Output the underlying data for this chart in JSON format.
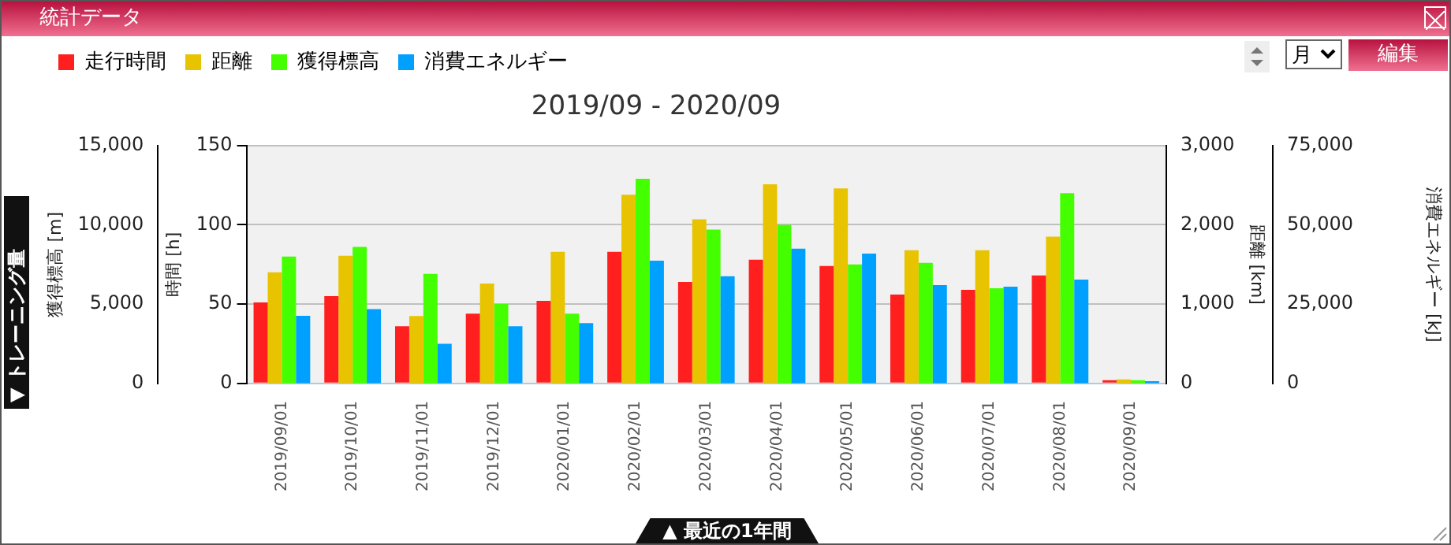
{
  "chart_data": [
    {
      "type": "bar",
      "title": "統計データ",
      "subtitle": "2019/09 - 2020/09",
      "categories": [
        "2019/09/01",
        "2019/10/01",
        "2019/11/01",
        "2019/12/01",
        "2020/01/01",
        "2020/02/01",
        "2020/03/01",
        "2020/04/01",
        "2020/05/01",
        "2020/06/01",
        "2020/07/01",
        "2020/08/01",
        "2020/09/01"
      ],
      "series": [
        {
          "name": "走行時間",
          "color": "#ff1f1f",
          "values": [
            51,
            55,
            36,
            44,
            52,
            83,
            64,
            78,
            74,
            56,
            59,
            68,
            2
          ]
        },
        {
          "name": "距離",
          "color": "#e8c300",
          "axis": "y2",
          "values": [
            1400,
            1610,
            850,
            1260,
            1660,
            2380,
            2070,
            2510,
            2460,
            1680,
            1680,
            1850,
            50
          ]
        },
        {
          "name": "獲得標高",
          "color": "#44ff00",
          "axis": "y3",
          "values": [
            8000,
            8600,
            6900,
            5000,
            4400,
            12900,
            9700,
            10000,
            7500,
            7600,
            6000,
            12000,
            200
          ]
        }
      ],
      "ylabel": "時間 [h]",
      "ylim": [
        0,
        150
      ],
      "yticks": [
        0,
        50,
        100,
        150
      ],
      "y2label": "距離 [km]",
      "y2lim": [
        0,
        3000
      ],
      "y2ticks": [
        0,
        {
          "value": 1000,
          "label": "1,000"
        },
        {
          "value": 2000,
          "label": "2,000"
        },
        {
          "value": 3000,
          "label": "3,000"
        }
      ],
      "y3label": "獲得標高 [m]",
      "y3lim": [
        0,
        15000
      ],
      "y3ticks": [
        0,
        {
          "value": 5000,
          "label": "5,000"
        },
        {
          "value": 10000,
          "label": "10,000"
        },
        {
          "value": 15000,
          "label": "15,000"
        }
      ],
      "grid": "y",
      "legend": "top left",
      "annotations": [
        "月",
        "編集",
        "▼ トレーニング量",
        "▲ 最近の1年間"
      ]
    },
    {
      "type": "bar",
      "categories": [
        "2019/09/01",
        "2019/10/01",
        "2019/11/01",
        "2019/12/01",
        "2020/01/01",
        "2020/02/01",
        "2020/03/01",
        "2020/04/01",
        "2020/05/01",
        "2020/06/01",
        "2020/07/01",
        "2020/08/01",
        "2020/09/01"
      ],
      "series": [
        {
          "name": "消費エネルギー",
          "color": "#00a0ff",
          "values": [
            21300,
            23400,
            12500,
            18000,
            19000,
            38700,
            33800,
            42500,
            40900,
            31000,
            30500,
            32700,
            700
          ]
        }
      ],
      "ylabel": "消費エネルギー [kJ]",
      "ylim": [
        0,
        75000
      ],
      "yticks": [
        0,
        {
          "value": 25000,
          "label": "25,000"
        },
        {
          "value": 50000,
          "label": "50,000"
        },
        {
          "value": 75000,
          "label": "75,000"
        }
      ],
      "tick_labels": "y",
      "legend": "top left"
    }
  ]
}
